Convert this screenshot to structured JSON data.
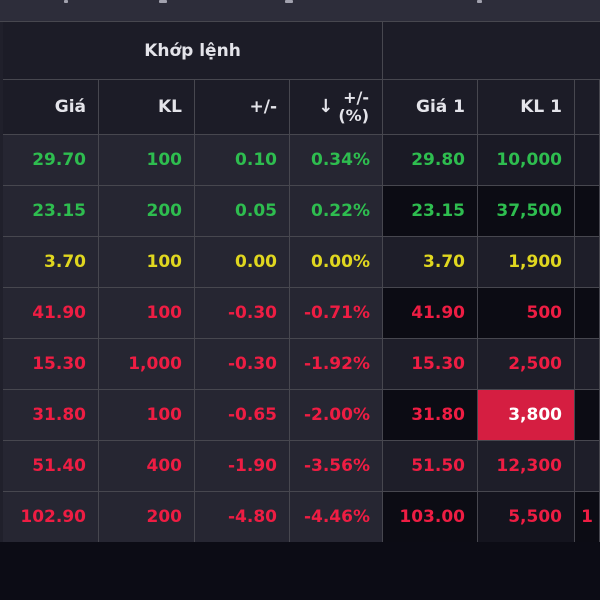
{
  "board": {
    "group_header": {
      "matched_label": "Khớp lệnh",
      "right_label": ""
    },
    "columns": {
      "gia": "Giá",
      "kl": "KL",
      "chg": "+/-",
      "pct_line1": "+/-",
      "pct_line2": "(%)",
      "sort_icon": "↓",
      "gia1": "Giá 1",
      "kl1": "KL 1"
    },
    "rows": [
      {
        "trend": "up",
        "gia": "29.70",
        "kl": "100",
        "chg": "0.10",
        "pct": "0.34%",
        "gia1": "29.80",
        "kl1": "10,000",
        "extra": "",
        "bg": {
          "gia1": "mid",
          "kl1": "mid",
          "extra": "mid"
        }
      },
      {
        "trend": "up",
        "gia": "23.15",
        "kl": "200",
        "chg": "0.05",
        "pct": "0.22%",
        "gia1": "23.15",
        "kl1": "37,500",
        "extra": "",
        "bg": {
          "gia1": "dark",
          "kl1": "dark",
          "extra": "dark"
        }
      },
      {
        "trend": "ref",
        "gia": "3.70",
        "kl": "100",
        "chg": "0.00",
        "pct": "0.00%",
        "gia1": "3.70",
        "kl1": "1,900",
        "extra": "",
        "bg": {
          "gia1": "base",
          "kl1": "base",
          "extra": "base"
        }
      },
      {
        "trend": "down",
        "gia": "41.90",
        "kl": "100",
        "chg": "-0.30",
        "pct": "-0.71%",
        "gia1": "41.90",
        "kl1": "500",
        "extra": "",
        "bg": {
          "gia1": "dark",
          "kl1": "dark",
          "extra": "dark"
        }
      },
      {
        "trend": "down",
        "gia": "15.30",
        "kl": "1,000",
        "chg": "-0.30",
        "pct": "-1.92%",
        "gia1": "15.30",
        "kl1": "2,500",
        "extra": "",
        "bg": {
          "gia1": "base",
          "kl1": "base",
          "extra": "base"
        }
      },
      {
        "trend": "down",
        "gia": "31.80",
        "kl": "100",
        "chg": "-0.65",
        "pct": "-2.00%",
        "gia1": "31.80",
        "kl1": "3,800",
        "extra": "",
        "bg": {
          "gia1": "dark",
          "kl1": "hl",
          "extra": "dark"
        }
      },
      {
        "trend": "down",
        "gia": "51.40",
        "kl": "400",
        "chg": "-1.90",
        "pct": "-3.56%",
        "gia1": "51.50",
        "kl1": "12,300",
        "extra": "",
        "bg": {
          "gia1": "base",
          "kl1": "base",
          "extra": "base"
        }
      },
      {
        "trend": "down",
        "gia": "102.90",
        "kl": "200",
        "chg": "-4.80",
        "pct": "-4.46%",
        "gia1": "103.00",
        "kl1": "5,500",
        "extra": "1",
        "bg": {
          "gia1": "dark",
          "kl1": "mid2",
          "extra": "dark"
        }
      }
    ],
    "colors": {
      "up": "#2ebd4f",
      "down": "#ee1d43",
      "reference": "#e0d71f",
      "highlight_bg": "#d51e41",
      "highlight_text": "#ffffff"
    }
  }
}
